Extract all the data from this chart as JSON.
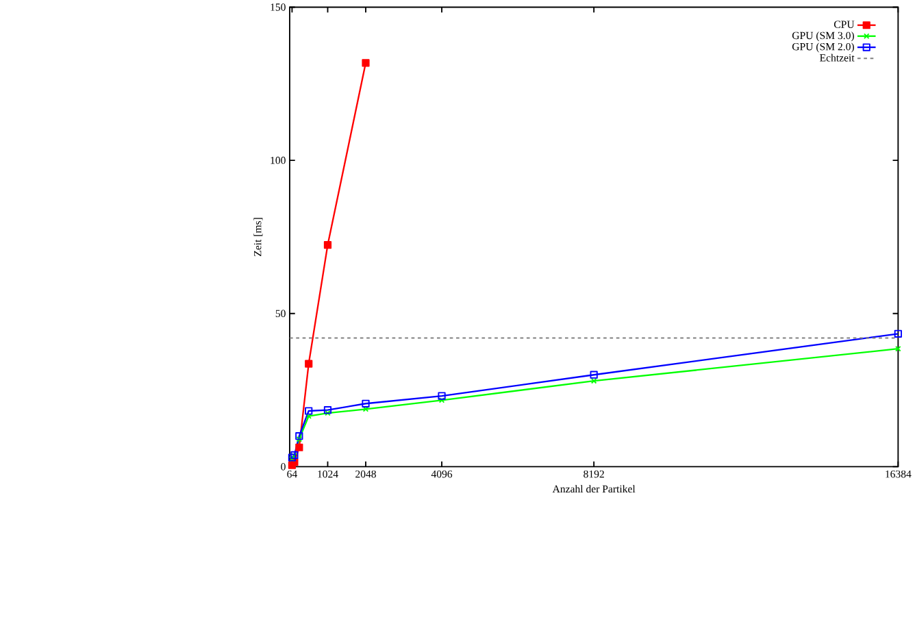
{
  "chart_data": {
    "type": "line",
    "xlabel": "Anzahl der Partikel",
    "ylabel": "Zeit [ms]",
    "x": [
      64,
      128,
      256,
      512,
      1024,
      2048,
      4096,
      8192,
      16384
    ],
    "series": [
      {
        "name": "CPU",
        "color": "#ff0000",
        "marker": "square",
        "values": [
          0.5,
          1.5,
          6.3,
          33.6,
          72.4,
          131.8,
          null,
          null,
          null
        ]
      },
      {
        "name": "GPU (SM 3.0)",
        "color": "#00ff00",
        "marker": "cross",
        "values": [
          2.5,
          3.5,
          9,
          16.5,
          17.5,
          18.8,
          21.7,
          28,
          38.5
        ]
      },
      {
        "name": "GPU (SM 2.0)",
        "color": "#0000ff",
        "marker": "square open",
        "values": [
          3,
          3.8,
          10,
          18.2,
          18.5,
          20.6,
          23.1,
          30,
          43.4
        ]
      }
    ],
    "ref_lines": [
      {
        "axis": "y",
        "value": 42,
        "label": "Echtzeit",
        "color": "#808080",
        "line_style": "dashed"
      }
    ],
    "xlim": [
      0,
      16384
    ],
    "ylim": [
      0,
      150
    ],
    "xticks": [
      64,
      1024,
      2048,
      4096,
      8192,
      16384
    ],
    "yticks": [
      0,
      50,
      100,
      150
    ],
    "legend": "top right",
    "grid": false
  }
}
